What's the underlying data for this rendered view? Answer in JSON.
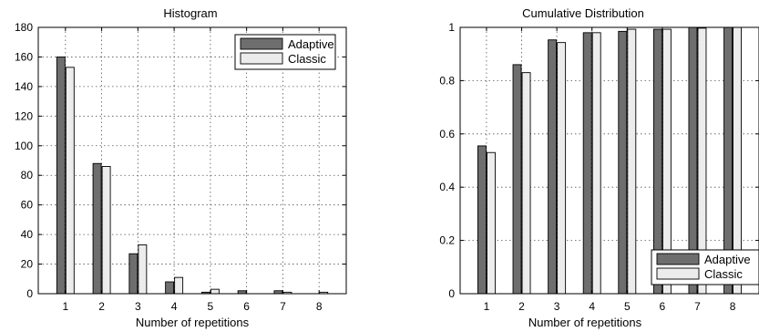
{
  "colors": {
    "adaptive": "#6e6e6e",
    "classic": "#ececec"
  },
  "chart_data": [
    {
      "type": "bar",
      "title": "Histogram",
      "xlabel": "Number of repetitions",
      "ylabel": "",
      "categories": [
        "1",
        "2",
        "3",
        "4",
        "5",
        "6",
        "7",
        "8"
      ],
      "ylim": [
        0,
        180
      ],
      "yticks": [
        0,
        20,
        40,
        60,
        80,
        100,
        120,
        140,
        160,
        180
      ],
      "ytick_labels": [
        "0",
        "20",
        "40",
        "60",
        "80",
        "100",
        "120",
        "140",
        "160",
        "180"
      ],
      "grid": true,
      "legend_position": "top-right",
      "series": [
        {
          "name": "Adaptive",
          "values": [
            160,
            88,
            27,
            8,
            1,
            2,
            2,
            0
          ]
        },
        {
          "name": "Classic",
          "values": [
            153,
            86,
            33,
            11,
            3,
            0,
            1,
            1
          ]
        }
      ]
    },
    {
      "type": "bar",
      "title": "Cumulative Distribution",
      "xlabel": "Number of repetitions",
      "ylabel": "",
      "categories": [
        "1",
        "2",
        "3",
        "4",
        "5",
        "6",
        "7",
        "8"
      ],
      "ylim": [
        0,
        1
      ],
      "yticks": [
        0,
        0.2,
        0.4,
        0.6,
        0.8,
        1
      ],
      "ytick_labels": [
        "0",
        "0.2",
        "0.4",
        "0.6",
        "0.8",
        "1"
      ],
      "grid": true,
      "legend_position": "bottom-right",
      "series": [
        {
          "name": "Adaptive",
          "values": [
            0.555,
            0.86,
            0.953,
            0.98,
            0.985,
            0.993,
            1.0,
            1.0
          ]
        },
        {
          "name": "Classic",
          "values": [
            0.53,
            0.83,
            0.943,
            0.98,
            0.993,
            0.993,
            0.997,
            1.0
          ]
        }
      ]
    }
  ]
}
